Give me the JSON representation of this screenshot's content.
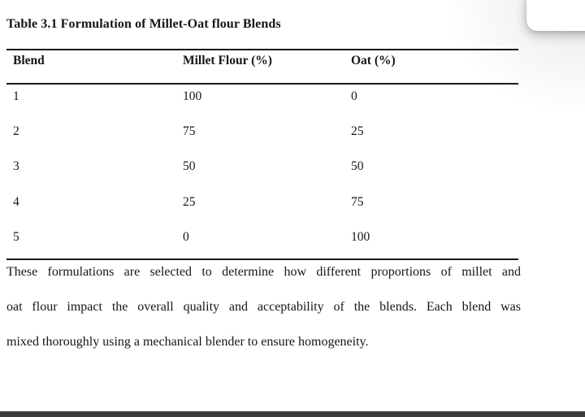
{
  "document": {
    "title": "Table 3.1 Formulation of Millet-Oat flour Blends",
    "table": {
      "headers": [
        "Blend",
        "Millet Flour (%)",
        "Oat (%)"
      ],
      "rows": [
        {
          "blend": "1",
          "millet_flour_pct": "100",
          "oat_pct": "0"
        },
        {
          "blend": "2",
          "millet_flour_pct": "75",
          "oat_pct": "25"
        },
        {
          "blend": "3",
          "millet_flour_pct": "50",
          "oat_pct": "50"
        },
        {
          "blend": "4",
          "millet_flour_pct": "25",
          "oat_pct": "75"
        },
        {
          "blend": "5",
          "millet_flour_pct": "0",
          "oat_pct": "100"
        }
      ]
    },
    "paragraph": {
      "full_text": "These formulations are selected to determine how different proportions of millet and oat flour impact the overall quality and acceptability of the blends. Each blend was mixed thoroughly using a mechanical blender to ensure homogeneity.",
      "lines": [
        "These formulations are selected to determine how different proportions of millet and",
        "oat flour impact the overall quality and acceptability of the blends. Each blend was",
        "mixed thoroughly using a mechanical blender to ensure homogeneity."
      ]
    }
  },
  "overlay": {
    "floating_card": "white rounded panel corner, top-right"
  },
  "colors": {
    "page_bg": "#ffffff",
    "text": "#161616",
    "rule": "#1a1a1a",
    "card_bg": "#ffffff",
    "bottom_bar": "#3d3d3d"
  }
}
